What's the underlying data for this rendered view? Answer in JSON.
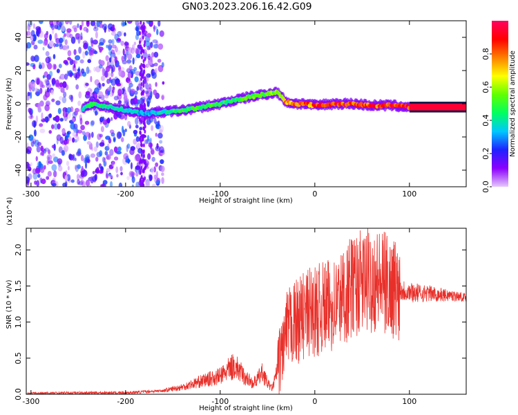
{
  "title": "GN03.2023.206.16.42.G09",
  "chart_data": [
    {
      "type": "heatmap",
      "xlabel": "Height of straight line (km)",
      "ylabel": "Frequency (Hz)",
      "xlim": [
        -305,
        160
      ],
      "ylim": [
        -50,
        50
      ],
      "xticks": [
        -300,
        -200,
        -100,
        0,
        100
      ],
      "yticks": [
        -40,
        -20,
        0,
        20,
        40
      ],
      "colorbar": {
        "label": "Normalized spectral amplitude",
        "range": [
          0,
          1
        ],
        "ticks": [
          "0.0",
          "0.2",
          "0.4",
          "0.6",
          "0.8"
        ],
        "colors": [
          "#e6c8ff",
          "#8b00ff",
          "#2020ff",
          "#00c8ff",
          "#00ff60",
          "#60ff00",
          "#ffff00",
          "#ff8000",
          "#ff0000",
          "#ff0060"
        ]
      },
      "ridge": {
        "x": [
          -245,
          -235,
          -180,
          -160,
          -140,
          -120,
          -100,
          -85,
          -70,
          -60,
          -50,
          -40,
          -30,
          -20,
          -10,
          0,
          20,
          40,
          60,
          80,
          100,
          160
        ],
        "y": [
          -3,
          0,
          -6,
          -5,
          -4,
          -2,
          0,
          2,
          4,
          5,
          6,
          7,
          1,
          0,
          0,
          -1,
          0,
          0,
          -1,
          -1,
          -2,
          -2
        ],
        "amplitude": [
          0.4,
          0.45,
          0.35,
          0.4,
          0.5,
          0.5,
          0.5,
          0.45,
          0.55,
          0.6,
          0.55,
          0.6,
          0.8,
          0.8,
          0.85,
          0.85,
          0.9,
          0.9,
          0.9,
          0.9,
          0.9,
          0.95
        ]
      },
      "noise_region_x": [
        -305,
        -160
      ]
    },
    {
      "type": "line",
      "xlabel": "Height of straight line (km)",
      "ylabel": "SNR (10 * v/v)",
      "ylabel_multiplier": "(x10^4)",
      "xlim": [
        -305,
        160
      ],
      "ylim": [
        0,
        2.3
      ],
      "xticks": [
        -300,
        -200,
        -100,
        0,
        100
      ],
      "yticks": [
        0.0,
        0.5,
        1.0,
        1.5,
        2.0
      ],
      "color": "#e8302a",
      "series": [
        {
          "x": [
            -305,
            -250,
            -200,
            -160,
            -140,
            -120,
            -100,
            -90,
            -85,
            -75,
            -65,
            -60,
            -55,
            -50,
            -45,
            -40,
            -35,
            -30,
            -25,
            -20,
            -15,
            -10,
            -5,
            0,
            10,
            20,
            30,
            40,
            50,
            60,
            70,
            80,
            90,
            100,
            110,
            120,
            130,
            140,
            150,
            160
          ],
          "y": [
            0.01,
            0.02,
            0.02,
            0.05,
            0.1,
            0.18,
            0.25,
            0.35,
            0.4,
            0.25,
            0.15,
            0.22,
            0.3,
            0.15,
            0.08,
            0.3,
            0.6,
            0.85,
            0.95,
            1.0,
            1.05,
            1.1,
            1.15,
            1.15,
            1.2,
            1.25,
            1.35,
            1.5,
            1.55,
            1.6,
            1.55,
            1.5,
            1.45,
            1.42,
            1.4,
            1.4,
            1.38,
            1.37,
            1.36,
            1.34
          ]
        }
      ]
    }
  ]
}
